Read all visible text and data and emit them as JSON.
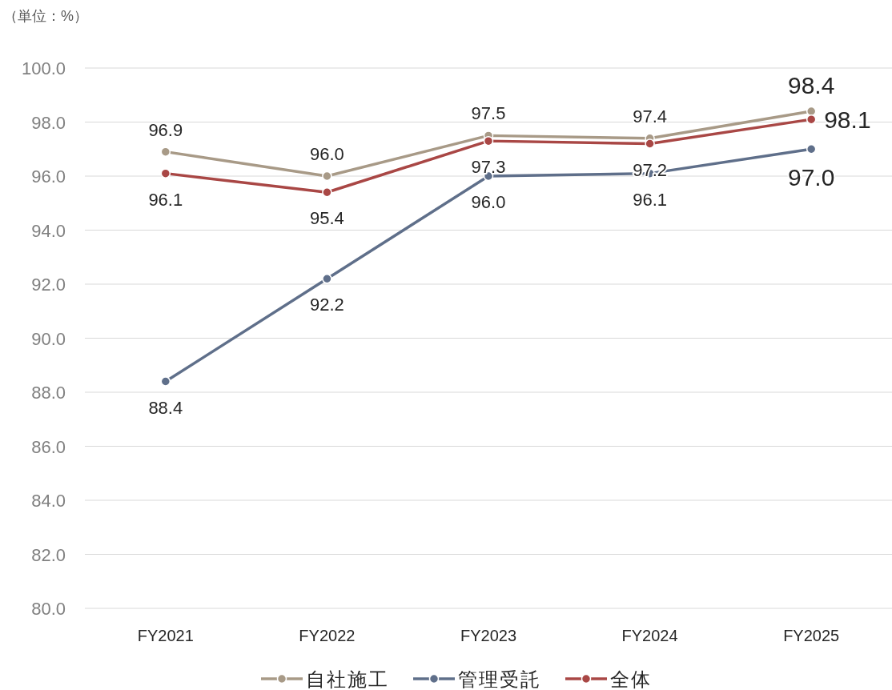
{
  "chart_data": {
    "type": "line",
    "ylabel": "（単位：%）",
    "categories": [
      "FY2021",
      "FY2022",
      "FY2023",
      "FY2024",
      "FY2025"
    ],
    "series": [
      {
        "name": "自社施工",
        "color": "#a89a87",
        "values": [
          96.9,
          96.0,
          97.5,
          97.4,
          98.4
        ],
        "value_labels": [
          "96.9",
          "96.0",
          "97.5",
          "97.4",
          "98.4"
        ]
      },
      {
        "name": "管理受託",
        "color": "#5f6f8a",
        "values": [
          88.4,
          92.2,
          96.0,
          96.1,
          97.0
        ],
        "value_labels": [
          "88.4",
          "92.2",
          "96.0",
          "96.1",
          "97.0"
        ]
      },
      {
        "name": "全体",
        "color": "#a94745",
        "values": [
          96.1,
          95.4,
          97.3,
          97.2,
          98.1
        ],
        "value_labels": [
          "96.1",
          "95.4",
          "97.3",
          "97.2",
          "98.1"
        ]
      }
    ],
    "ylim": [
      80,
      100
    ],
    "yticks": [
      {
        "value": 80,
        "label": "80.0"
      },
      {
        "value": 82,
        "label": "82.0"
      },
      {
        "value": 84,
        "label": "84.0"
      },
      {
        "value": 86,
        "label": "86.0"
      },
      {
        "value": 88,
        "label": "88.0"
      },
      {
        "value": 90,
        "label": "90.0"
      },
      {
        "value": 92,
        "label": "92.0"
      },
      {
        "value": 94,
        "label": "94.0"
      },
      {
        "value": 96,
        "label": "96.0"
      },
      {
        "value": 98,
        "label": "98.0"
      },
      {
        "value": 100,
        "label": "100.0"
      }
    ],
    "grid": "y",
    "legend": "bottom",
    "marker": "circle",
    "line_style": "solid"
  }
}
